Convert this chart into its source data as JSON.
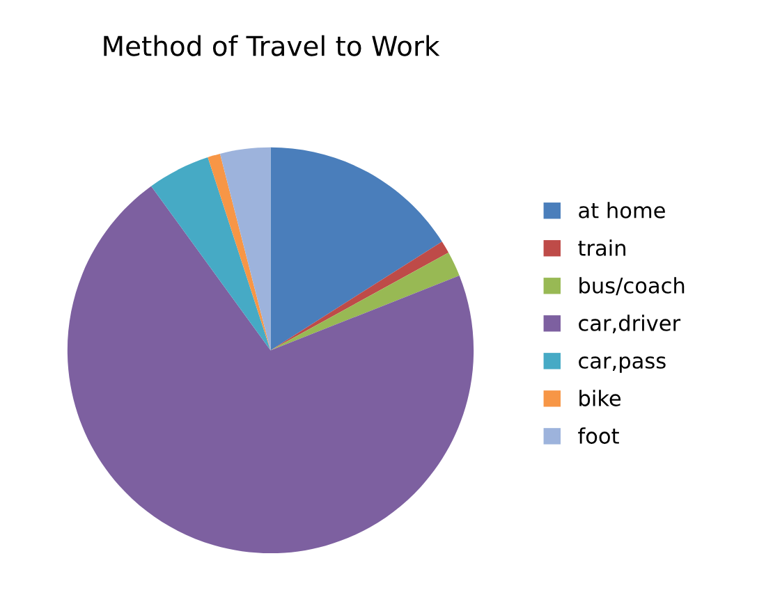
{
  "chart_data": {
    "type": "pie",
    "title": "Method of Travel to Work",
    "categories": [
      "at home",
      "train",
      "bus/coach",
      "car,driver",
      "car,pass",
      "bike",
      "foot"
    ],
    "values": [
      16,
      1,
      2,
      71,
      5,
      1,
      4
    ],
    "colors": [
      "#4a7ebb",
      "#be4b48",
      "#98b954",
      "#7d60a0",
      "#46aac5",
      "#f79646",
      "#9db3dc"
    ],
    "legend": "right"
  }
}
